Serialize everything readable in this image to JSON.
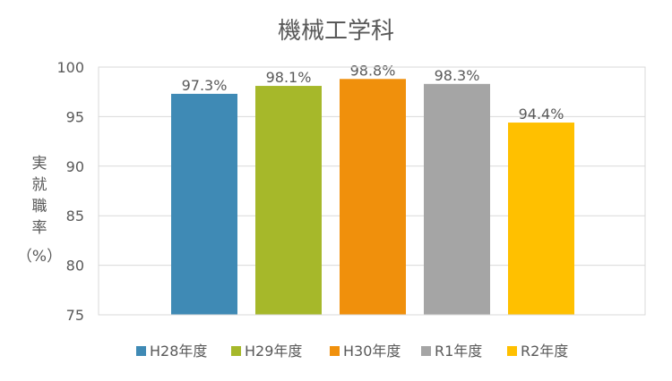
{
  "chart_data": {
    "type": "bar",
    "title": "機械工学科",
    "ylabel_lines": [
      "実",
      "就",
      "職",
      "率",
      "（%）"
    ],
    "ylim": [
      75,
      100
    ],
    "yticks": [
      75,
      80,
      85,
      90,
      95,
      100
    ],
    "grid": true,
    "legend_position": "bottom",
    "categories": [
      "H28年度",
      "H29年度",
      "H30年度",
      "R1年度",
      "R2年度"
    ],
    "values": [
      97.3,
      98.1,
      98.8,
      98.3,
      94.4
    ],
    "value_labels": [
      "97.3%",
      "98.1%",
      "98.8%",
      "98.3%",
      "94.4%"
    ],
    "colors": [
      "#3f8ab5",
      "#a6b82a",
      "#f0900c",
      "#a5a5a5",
      "#ffc000"
    ]
  }
}
